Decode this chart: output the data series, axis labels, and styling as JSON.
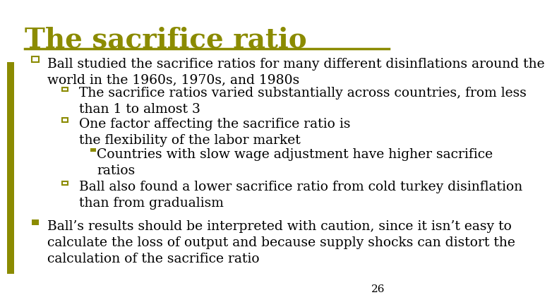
{
  "title": "The sacrifice ratio",
  "title_color": "#8B8B00",
  "title_fontsize": 28,
  "background_color": "#FFFFFF",
  "line_color": "#8B8B00",
  "text_color": "#000000",
  "slide_number": "26",
  "bullet_color": "#8B8B00",
  "body_fontsize": 13.5,
  "content": [
    {
      "level": 0,
      "bullet": "p",
      "text": "Ball studied the sacrifice ratios for many different disinflations around the\nworld in the 1960s, 1970s, and 1980s"
    },
    {
      "level": 1,
      "bullet": "p",
      "text": "The sacrifice ratios varied substantially across countries, from less\nthan 1 to almost 3"
    },
    {
      "level": 1,
      "bullet": "p",
      "text": "One factor affecting the sacrifice ratio is\nthe flexibility of the labor market"
    },
    {
      "level": 2,
      "bullet": "s",
      "text": "Countries with slow wage adjustment have higher sacrifice\nratios"
    },
    {
      "level": 1,
      "bullet": "p",
      "text": "Ball also found a lower sacrifice ratio from cold turkey disinflation\nthan from gradualism"
    },
    {
      "level": 0,
      "bullet": "n",
      "text": "Ball’s results should be interpreted with caution, since it isn’t easy to\ncalculate the loss of output and because supply shocks can distort the\ncalculation of the sacrifice ratio"
    }
  ]
}
